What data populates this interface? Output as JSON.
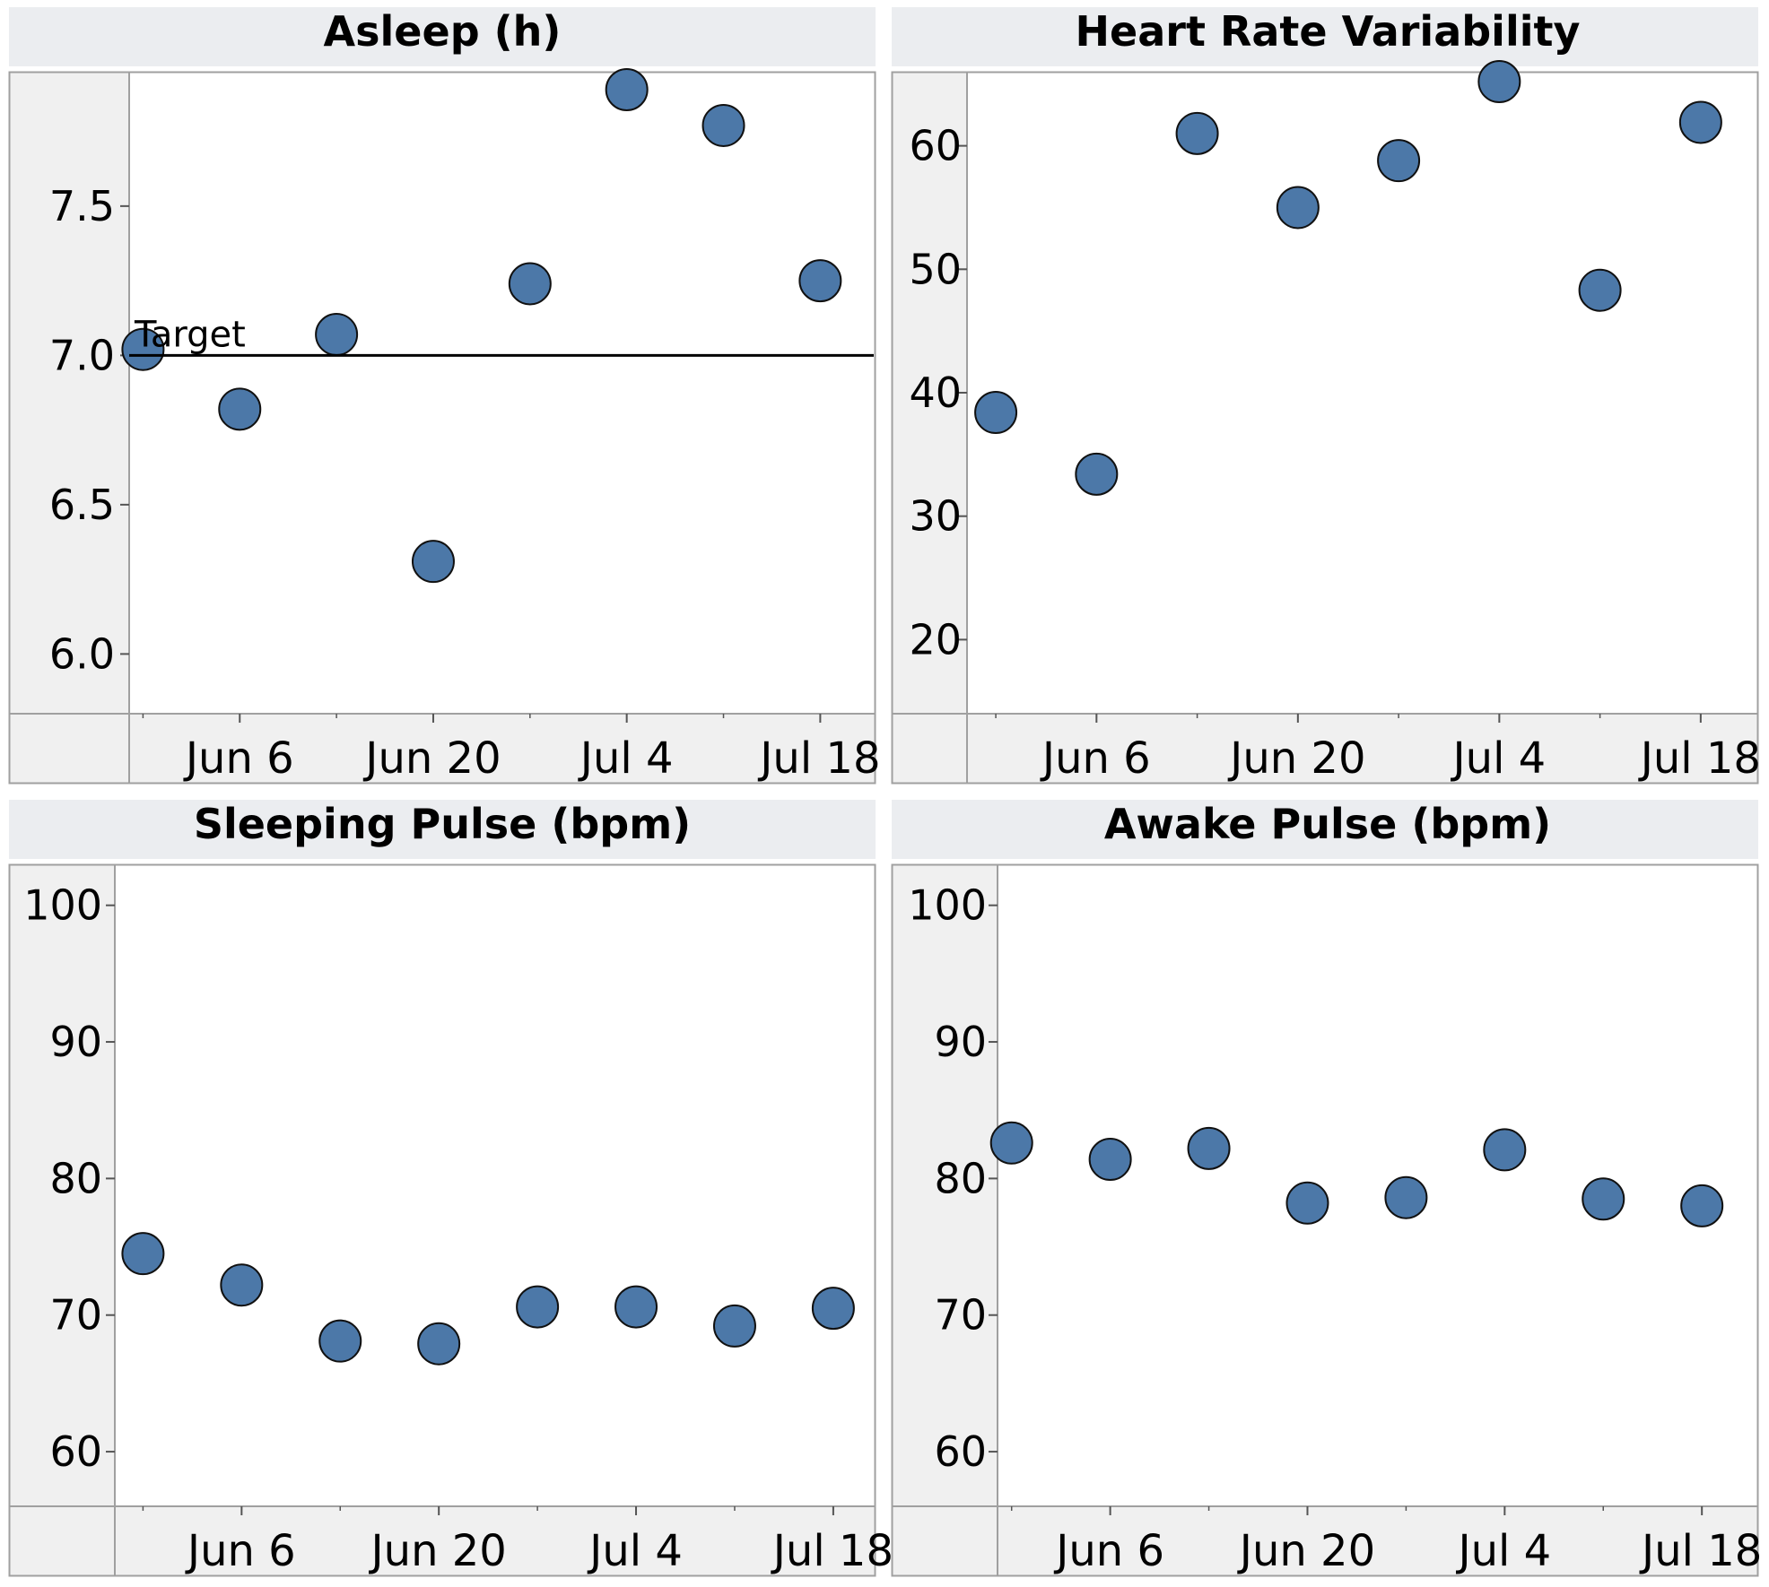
{
  "colors": {
    "marker_fill": "#4C78A8",
    "marker_stroke": "#111111",
    "header_bg": "#EBEDF0",
    "axis_band_bg": "#F0F0F0",
    "frame": "#A0A0A0",
    "reference_line": "#000000"
  },
  "chart_data": [
    {
      "type": "scatter",
      "title": "Asleep (h)",
      "x_ticks": [
        "Jun 6",
        "Jun 20",
        "Jul 4",
        "Jul 18"
      ],
      "x_range": [
        "2025-05-29",
        "2025-07-22"
      ],
      "y_ticks": [
        "6.0",
        "6.5",
        "7.0",
        "7.5"
      ],
      "y_range": [
        5.8,
        7.95
      ],
      "points": [
        {
          "x": "2025-05-30",
          "y": 7.02
        },
        {
          "x": "2025-06-06",
          "y": 6.82
        },
        {
          "x": "2025-06-13",
          "y": 7.07
        },
        {
          "x": "2025-06-20",
          "y": 6.31
        },
        {
          "x": "2025-06-27",
          "y": 7.24
        },
        {
          "x": "2025-07-04",
          "y": 7.89
        },
        {
          "x": "2025-07-11",
          "y": 7.77
        },
        {
          "x": "2025-07-18",
          "y": 7.25
        }
      ],
      "reference_line": {
        "y": 7.0,
        "label": "Target"
      }
    },
    {
      "type": "scatter",
      "title": "Heart Rate Variability",
      "x_ticks": [
        "Jun 6",
        "Jun 20",
        "Jul 4",
        "Jul 18"
      ],
      "x_range": [
        "2025-05-28",
        "2025-07-22"
      ],
      "y_ticks": [
        "20",
        "30",
        "40",
        "50",
        "60"
      ],
      "y_range": [
        14,
        66
      ],
      "points": [
        {
          "x": "2025-05-30",
          "y": 38.4
        },
        {
          "x": "2025-06-06",
          "y": 33.4
        },
        {
          "x": "2025-06-13",
          "y": 61.0
        },
        {
          "x": "2025-06-20",
          "y": 55.0
        },
        {
          "x": "2025-06-27",
          "y": 58.8
        },
        {
          "x": "2025-07-04",
          "y": 65.2
        },
        {
          "x": "2025-07-11",
          "y": 48.3
        },
        {
          "x": "2025-07-18",
          "y": 61.9
        }
      ]
    },
    {
      "type": "scatter",
      "title": "Sleeping Pulse (bpm)",
      "x_ticks": [
        "Jun 6",
        "Jun 20",
        "Jul 4",
        "Jul 18"
      ],
      "x_range": [
        "2025-05-28",
        "2025-07-21"
      ],
      "y_ticks": [
        "60",
        "70",
        "80",
        "90",
        "100"
      ],
      "y_range": [
        56,
        103
      ],
      "points": [
        {
          "x": "2025-05-30",
          "y": 74.5
        },
        {
          "x": "2025-06-06",
          "y": 72.2
        },
        {
          "x": "2025-06-13",
          "y": 68.1
        },
        {
          "x": "2025-06-20",
          "y": 67.9
        },
        {
          "x": "2025-06-27",
          "y": 70.6
        },
        {
          "x": "2025-07-04",
          "y": 70.6
        },
        {
          "x": "2025-07-11",
          "y": 69.2
        },
        {
          "x": "2025-07-18",
          "y": 70.5
        }
      ]
    },
    {
      "type": "scatter",
      "title": "Awake Pulse (bpm)",
      "x_ticks": [
        "Jun 6",
        "Jun 20",
        "Jul 4",
        "Jul 18"
      ],
      "x_range": [
        "2025-05-29",
        "2025-07-22"
      ],
      "y_ticks": [
        "60",
        "70",
        "80",
        "90",
        "100"
      ],
      "y_range": [
        56,
        103
      ],
      "points": [
        {
          "x": "2025-05-30",
          "y": 82.6
        },
        {
          "x": "2025-06-06",
          "y": 81.4
        },
        {
          "x": "2025-06-13",
          "y": 82.2
        },
        {
          "x": "2025-06-20",
          "y": 78.2
        },
        {
          "x": "2025-06-27",
          "y": 78.6
        },
        {
          "x": "2025-07-04",
          "y": 82.1
        },
        {
          "x": "2025-07-11",
          "y": 78.5
        },
        {
          "x": "2025-07-18",
          "y": 78.0
        }
      ]
    }
  ]
}
